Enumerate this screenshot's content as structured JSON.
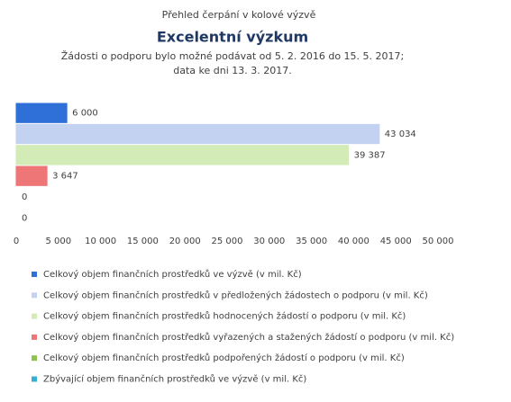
{
  "chart_data": {
    "type": "bar",
    "orientation": "horizontal",
    "pretitle": "Přehled čerpání v kolové výzvě",
    "title": "Excelentní výzkum",
    "subtitle": [
      "Žádosti o podporu bylo možné podávat od 5. 2. 2016 do 15. 5. 2017;",
      "data ke dni 13. 3. 2017."
    ],
    "xlim": [
      0,
      50000
    ],
    "xticks": [
      0,
      {
        "value": 5000,
        "label": "5 000"
      },
      {
        "value": 10000,
        "label": "10 000"
      },
      {
        "value": 15000,
        "label": "15 000"
      },
      {
        "value": 20000,
        "label": "20 000"
      },
      {
        "value": 25000,
        "label": "25 000"
      },
      {
        "value": 30000,
        "label": "30 000"
      },
      {
        "value": 35000,
        "label": "35 000"
      },
      {
        "value": 40000,
        "label": "40 000"
      },
      {
        "value": 45000,
        "label": "45 000"
      },
      {
        "value": 50000,
        "label": "50 000"
      }
    ],
    "series": [
      {
        "name": "Celkový objem finančních prostředků ve výzvě (v mil. Kč)",
        "color": "#2f6fd8",
        "values": [
          6000
        ],
        "value_labels": [
          "6 000"
        ]
      },
      {
        "name": "Celkový objem finančních prostředků v předložených žádostech o podporu (v mil. Kč)",
        "color": "#c3d2f0",
        "values": [
          43034
        ],
        "value_labels": [
          "43 034"
        ]
      },
      {
        "name": "Celkový objem finančních prostředků hodnocených žádostí o podporu (v mil. Kč)",
        "color": "#d3ebb6",
        "values": [
          39387
        ],
        "value_labels": [
          "39 387"
        ]
      },
      {
        "name": "Celkový objem finančních prostředků vyřazených a stažených žádostí o podporu (v mil. Kč)",
        "color": "#ef7676",
        "values": [
          3647
        ],
        "value_labels": [
          "3 647"
        ]
      },
      {
        "name": "Celkový objem finančních prostředků podpořených žádostí o podporu (v mil. Kč)",
        "color": "#8fc14f",
        "values": [
          0
        ],
        "value_labels": [
          "0"
        ]
      },
      {
        "name": "Zbývající objem finančních prostředků ve výzvě (v mil. Kč)",
        "color": "#36afd3",
        "values": [
          0
        ],
        "value_labels": [
          "0"
        ]
      }
    ]
  }
}
